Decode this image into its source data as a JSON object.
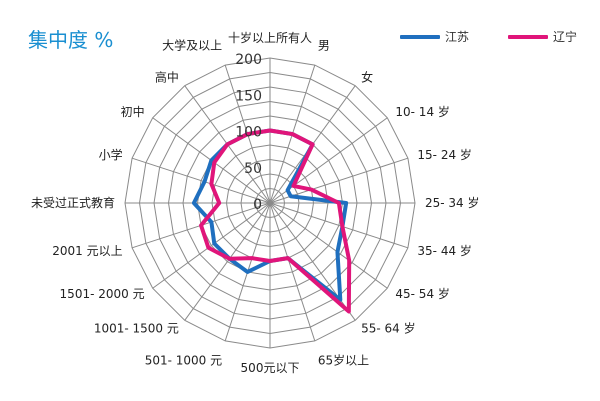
{
  "chart_data": {
    "type": "radar",
    "title": "集中度 %",
    "categories": [
      "十岁以上所有人",
      "男",
      "女",
      "10- 14 岁",
      "15- 24 岁",
      "25- 34 岁",
      "35- 44 岁",
      "45- 54 岁",
      "55- 64 岁",
      "65岁以上",
      "500元以下",
      "501- 1000 元",
      "1001- 1500 元",
      "1501- 2000 元",
      "2001 元以上",
      "未受过正式教育",
      "小学",
      "初中",
      "高中",
      "大学及以上"
    ],
    "radial_ticks": [
      0,
      50,
      100,
      150,
      200
    ],
    "rmax": 200,
    "legend_position": "top-right",
    "series": [
      {
        "name": "江苏",
        "color": "#1f6fbf",
        "values": [
          100,
          100,
          100,
          30,
          30,
          105,
          105,
          115,
          165,
          80,
          80,
          100,
          95,
          95,
          85,
          105,
          95,
          100,
          100,
          100
        ]
      },
      {
        "name": "辽宁",
        "color": "#e0157a",
        "values": [
          100,
          100,
          100,
          40,
          60,
          95,
          105,
          135,
          185,
          80,
          80,
          80,
          95,
          105,
          100,
          70,
          85,
          95,
          100,
          100
        ]
      }
    ]
  }
}
